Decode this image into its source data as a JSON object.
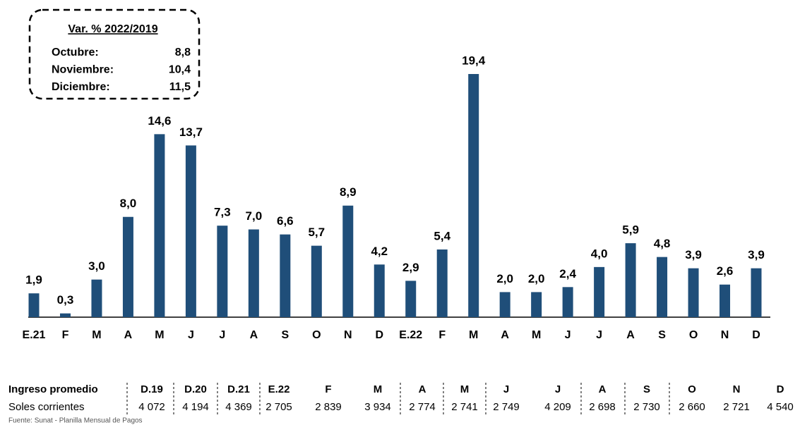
{
  "chart_data": {
    "type": "bar",
    "categories": [
      "E.21",
      "F",
      "M",
      "A",
      "M",
      "J",
      "J",
      "A",
      "S",
      "O",
      "N",
      "D",
      "E.22",
      "F",
      "M",
      "A",
      "M",
      "J",
      "J",
      "A",
      "S",
      "O",
      "N",
      "D"
    ],
    "values": [
      1.9,
      0.3,
      3.0,
      8.0,
      14.6,
      13.7,
      7.3,
      7.0,
      6.6,
      5.7,
      8.9,
      4.2,
      2.9,
      5.4,
      19.4,
      2.0,
      2.0,
      2.4,
      4.0,
      5.9,
      4.8,
      3.9,
      2.6,
      3.9
    ],
    "value_labels": [
      "1,9",
      "0,3",
      "3,0",
      "8,0",
      "14,6",
      "13,7",
      "7,3",
      "7,0",
      "6,6",
      "5,7",
      "8,9",
      "4,2",
      "2,9",
      "5,4",
      "19,4",
      "2,0",
      "2,0",
      "2,4",
      "4,0",
      "5,9",
      "4,8",
      "3,9",
      "2,6",
      "3,9"
    ],
    "color": "#1f4e79",
    "annotation": {
      "title": "Var. % 2022/2019",
      "rows": [
        {
          "label": "Octubre:",
          "value": "8,8"
        },
        {
          "label": "Noviembre:",
          "value": "10,4"
        },
        {
          "label": "Diciembre:",
          "value": "11,5"
        }
      ]
    }
  },
  "table": {
    "rows": [
      [
        "Ingreso promedio",
        "D.19",
        "D.20",
        "D.21",
        "E.22",
        "F",
        "M",
        "A",
        "M",
        "J",
        "J",
        "A",
        "S",
        "O",
        "N",
        "D"
      ],
      [
        "Soles corrientes",
        "4 072",
        "4 194",
        "4 369",
        "2 705",
        "2 839",
        "3 934",
        "2 774",
        "2 741",
        "2 749",
        "4 209",
        "2 698",
        "2 730",
        "2 660",
        "2 721",
        "4 540"
      ]
    ]
  },
  "source": "Fuente: Sunat - Planilla Mensual de Pagos"
}
